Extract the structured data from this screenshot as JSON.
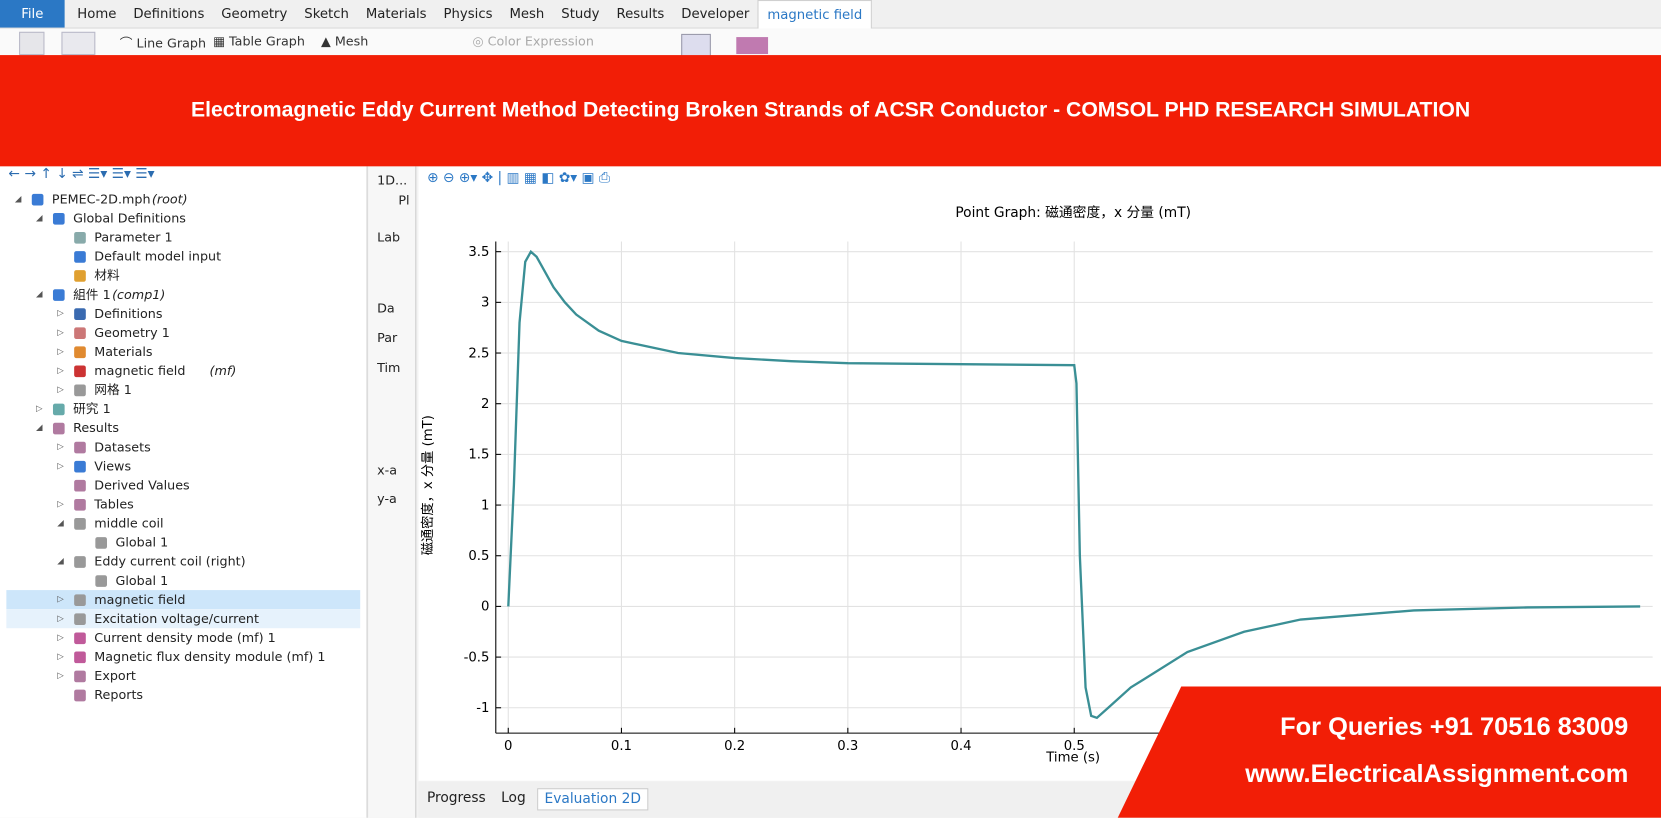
{
  "menu": [
    "File",
    "Home",
    "Definitions",
    "Geometry",
    "Sketch",
    "Materials",
    "Physics",
    "Mesh",
    "Study",
    "Results",
    "Developer",
    "magnetic field"
  ],
  "ribbon": [
    "Line Graph",
    "Table Graph",
    "Mesh",
    "Color Expression"
  ],
  "banner": "Electromagnetic Eddy Current Method Detecting Broken Strands of ACSR Conductor - COMSOL PHD RESEARCH SIMULATION",
  "tree": [
    {
      "label": "PEMEC-2D.mph",
      "tag": "(root)"
    },
    {
      "label": "Global Definitions"
    },
    {
      "label": "Parameter 1"
    },
    {
      "label": "Default model input"
    },
    {
      "label": "材料"
    },
    {
      "label": "組件 1",
      "tag": "(comp1)"
    },
    {
      "label": "Definitions"
    },
    {
      "label": "Geometry 1"
    },
    {
      "label": "Materials"
    },
    {
      "label": "magnetic field",
      "tag": "(mf)"
    },
    {
      "label": "网格 1"
    },
    {
      "label": "研究 1"
    },
    {
      "label": "Results"
    },
    {
      "label": "Datasets"
    },
    {
      "label": "Views"
    },
    {
      "label": "Derived Values"
    },
    {
      "label": "Tables"
    },
    {
      "label": "middle coil"
    },
    {
      "label": "Global 1"
    },
    {
      "label": "Eddy current coil (right)"
    },
    {
      "label": "Global 1"
    },
    {
      "label": "magnetic field"
    },
    {
      "label": "Excitation voltage/current"
    },
    {
      "label": "Current density mode (mf) 1"
    },
    {
      "label": "Magnetic flux density module (mf) 1"
    },
    {
      "label": "Export"
    },
    {
      "label": "Reports"
    }
  ],
  "settings_panel": [
    "1D...",
    "Pl",
    "Lab",
    "Da",
    "Par",
    "Tim",
    "x-a",
    "y-a"
  ],
  "chart_data": {
    "type": "line",
    "title": "Point Graph: 磁通密度，x 分量 (mT)",
    "x_label": "Time (s)",
    "y_label": "磁通密度，x 分量 (mT)",
    "x": [
      0,
      0.005,
      0.01,
      0.015,
      0.02,
      0.025,
      0.03,
      0.04,
      0.05,
      0.06,
      0.08,
      0.1,
      0.15,
      0.2,
      0.25,
      0.3,
      0.4,
      0.5,
      0.502,
      0.505,
      0.51,
      0.515,
      0.52,
      0.53,
      0.55,
      0.6,
      0.65,
      0.7,
      0.8,
      0.9,
      1.0
    ],
    "series": [
      {
        "name": "magnetic field",
        "color": "#3a8f95",
        "values": [
          0,
          1.2,
          2.8,
          3.4,
          3.5,
          3.45,
          3.35,
          3.15,
          3.0,
          2.88,
          2.72,
          2.62,
          2.5,
          2.45,
          2.42,
          2.4,
          2.39,
          2.38,
          2.2,
          0.5,
          -0.8,
          -1.08,
          -1.1,
          -1.0,
          -0.8,
          -0.45,
          -0.25,
          -0.13,
          -0.04,
          -0.01,
          0
        ]
      }
    ],
    "xlim": [
      -0.011,
      1.011
    ],
    "ylim": [
      -1.25,
      3.6
    ],
    "xticks": [
      0,
      0.1,
      0.2,
      0.3,
      0.4,
      0.5
    ],
    "yticks": [
      -1,
      -0.5,
      0,
      0.5,
      1,
      1.5,
      2,
      2.5,
      3,
      3.5
    ],
    "grid": true
  },
  "bottom_tabs": [
    "Progress",
    "Log",
    "Evaluation 2D"
  ],
  "contact": {
    "phone": "For Queries +91 70516 83009",
    "website": "www.ElectricalAssignment.com"
  }
}
